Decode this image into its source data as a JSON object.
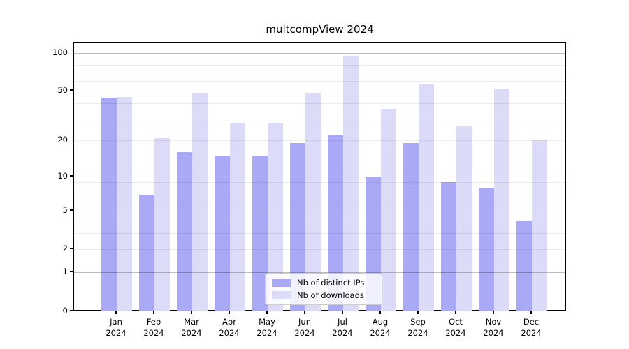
{
  "chart_data": {
    "type": "bar",
    "title": "multcompView 2024",
    "year": "2024",
    "categories": [
      "Jan",
      "Feb",
      "Mar",
      "Apr",
      "May",
      "Jun",
      "Jul",
      "Aug",
      "Sep",
      "Oct",
      "Nov",
      "Dec"
    ],
    "series": [
      {
        "name": "Nb of distinct IPs",
        "color": "#a9a9f6",
        "values": [
          44,
          7,
          16,
          15,
          15,
          19,
          22,
          10,
          19,
          9,
          8,
          4
        ]
      },
      {
        "name": "Nb of downloads",
        "color": "#dcdcf9",
        "values": [
          45,
          21,
          48,
          28,
          28,
          48,
          95,
          36,
          57,
          26,
          52,
          20
        ]
      }
    ],
    "yscale": "log10(v+1)",
    "ylim": [
      0,
      110
    ],
    "yticks": [
      0,
      1,
      2,
      5,
      10,
      20,
      50,
      100
    ],
    "major_gridlines": [
      1,
      10,
      100
    ],
    "minor_gridlines": [
      2,
      3,
      4,
      5,
      6,
      7,
      8,
      9,
      20,
      30,
      40,
      50,
      60,
      70,
      80,
      90
    ],
    "grid": "horizontal",
    "legend_position": "bottom-center",
    "axis_color": "#000000",
    "background": "#ffffff"
  }
}
